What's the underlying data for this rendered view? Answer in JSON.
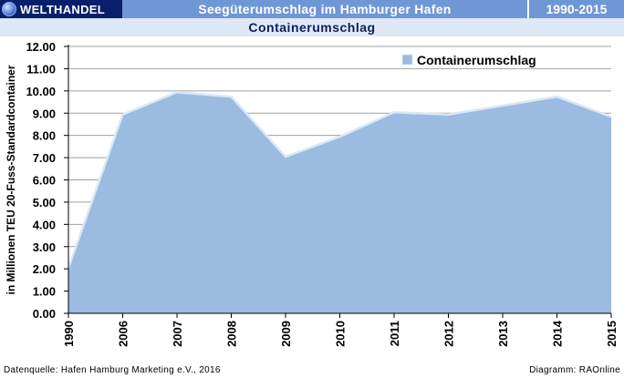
{
  "header": {
    "brand_label": "WELTHANDEL",
    "title": "Seegüterumschlag im Hamburger Hafen",
    "years": "1990-2015",
    "subtitle": "Containerumschlag"
  },
  "footer": {
    "source": "Datenquelle: Hafen Hamburg Marketing e.V., 2016",
    "credit": "Diagramm: RAOnline"
  },
  "colors": {
    "area_fill": "#9bbbe0",
    "area_line": "#d9e8f7",
    "grid": "#a0a0a0",
    "header_dark": "#0a1f6b",
    "header_light": "#6f97d6",
    "subtitle_bg": "#dfe8f6"
  },
  "chart_data": {
    "type": "area",
    "categories": [
      "1990",
      "2006",
      "2007",
      "2008",
      "2009",
      "2010",
      "2011",
      "2012",
      "2013",
      "2014",
      "2015"
    ],
    "series": [
      {
        "name": "Containerumschlag",
        "values": [
          2.0,
          8.9,
          9.9,
          9.7,
          7.0,
          7.9,
          9.0,
          8.9,
          9.3,
          9.7,
          8.8
        ]
      }
    ],
    "ylabel": "in Millionen TEU 20-Fuss-Standardcontainer",
    "xlabel": "",
    "ylim": [
      0,
      12
    ],
    "yticks": [
      "0.00",
      "1.00",
      "2.00",
      "3.00",
      "4.00",
      "5.00",
      "6.00",
      "7.00",
      "8.00",
      "9.00",
      "10.00",
      "11.00",
      "12.00"
    ],
    "grid": true,
    "legend_position": "top-right"
  }
}
